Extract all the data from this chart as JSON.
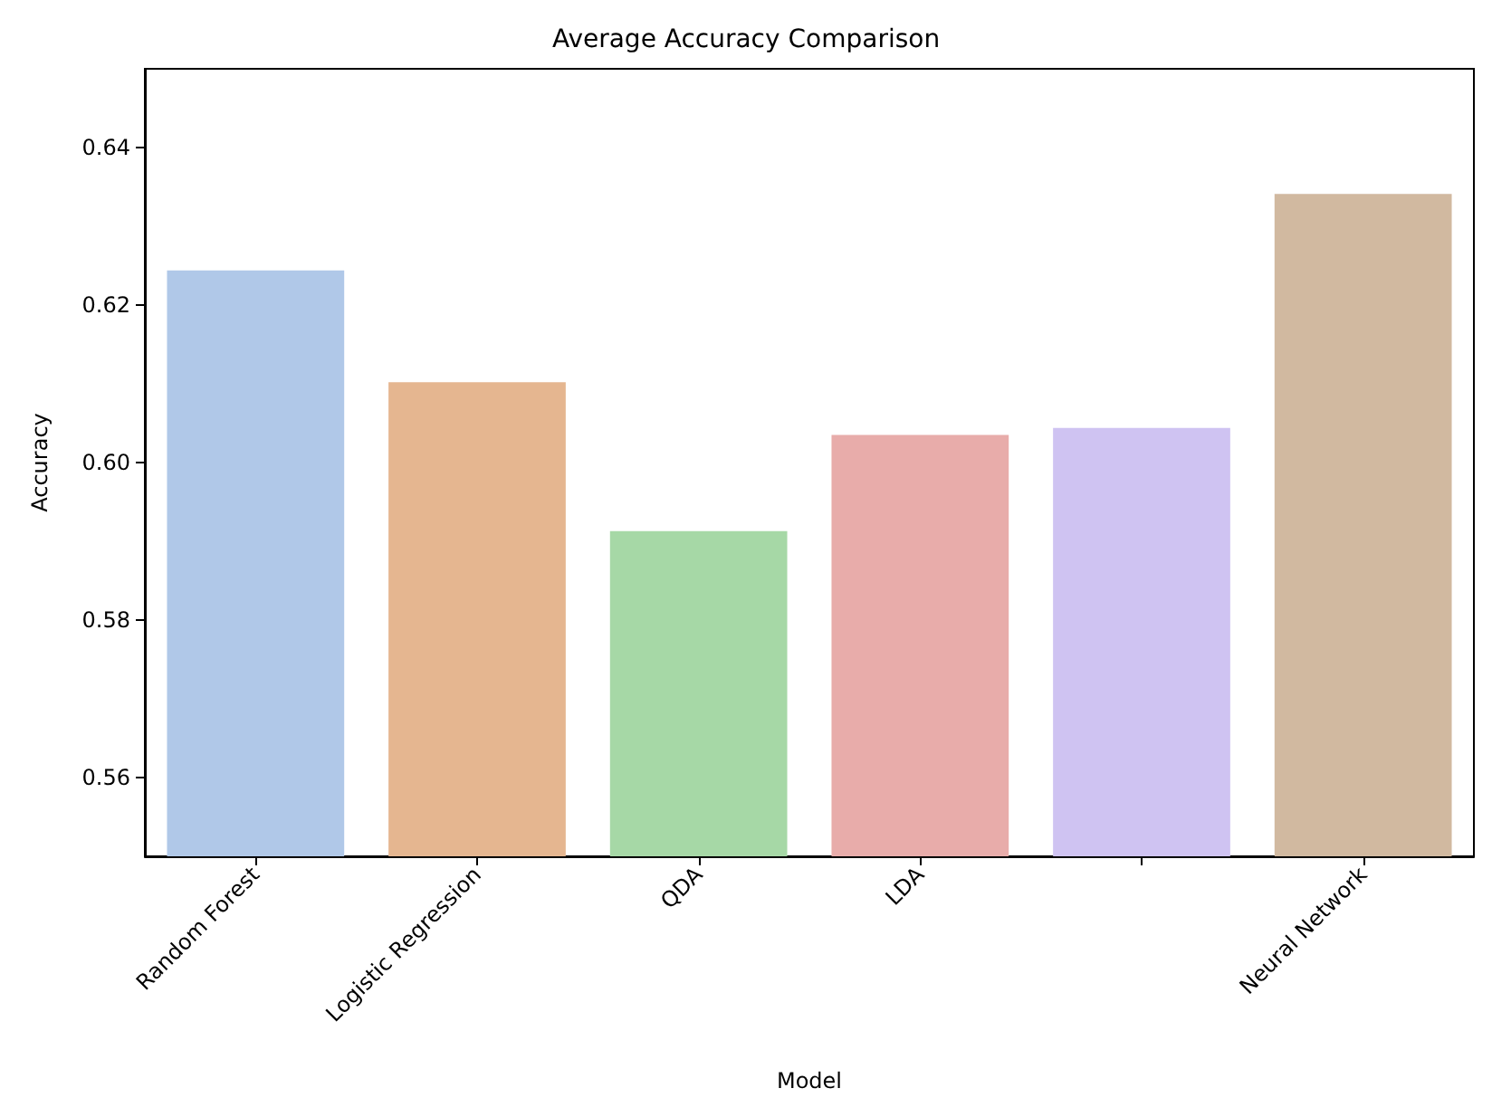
{
  "chart_data": {
    "type": "bar",
    "title": "Average Accuracy Comparison",
    "xlabel": "Model",
    "ylabel": "Accuracy",
    "categories": [
      "Random Forest",
      "Logistic Regression",
      "QDA",
      "LDA",
      null,
      "Neural Network"
    ],
    "values": [
      0.6244,
      0.6102,
      0.5913,
      0.6035,
      0.6044,
      0.6341
    ],
    "colors": [
      "#b0c8e8",
      "#e5b690",
      "#a6d8a6",
      "#e8acaa",
      "#cfc3f2",
      "#d1b9a0"
    ],
    "ylim": [
      0.55,
      0.65
    ],
    "yticks": [
      {
        "value": 0.56,
        "label": "0.56"
      },
      {
        "value": 0.58,
        "label": "0.58"
      },
      {
        "value": 0.6,
        "label": "0.60"
      },
      {
        "value": 0.62,
        "label": "0.62"
      },
      {
        "value": 0.64,
        "label": "0.64"
      }
    ],
    "grid": false
  }
}
